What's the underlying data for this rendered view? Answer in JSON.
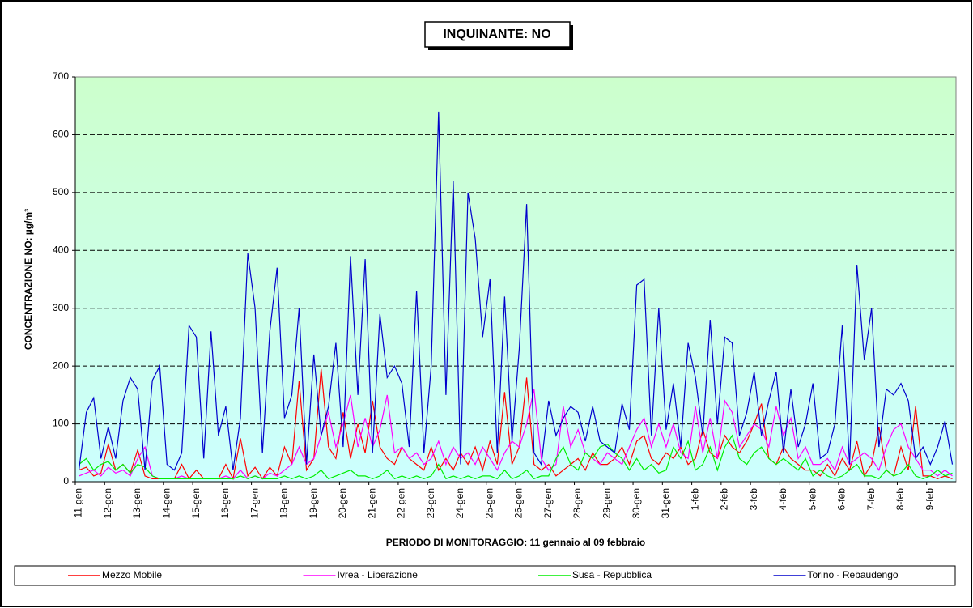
{
  "chart_data": {
    "type": "line",
    "title": "INQUINANTE: NO",
    "y_label": "CONCENTRAZIONE NO:  µg/m³",
    "x_label": "PERIODO DI MONITORAGGIO: 11 gennaio al 09 febbraio",
    "categories": [
      "11-gen",
      null,
      null,
      null,
      "12-gen",
      null,
      null,
      null,
      "13-gen",
      null,
      null,
      null,
      "14-gen",
      null,
      null,
      null,
      "15-gen",
      null,
      null,
      null,
      "16-gen",
      null,
      null,
      null,
      "17-gen",
      null,
      null,
      null,
      "18-gen",
      null,
      null,
      null,
      "19-gen",
      null,
      null,
      null,
      "20-gen",
      null,
      null,
      null,
      "21-gen",
      null,
      null,
      null,
      "22-gen",
      null,
      null,
      null,
      "23-gen",
      null,
      null,
      null,
      "24-gen",
      null,
      null,
      null,
      "25-gen",
      null,
      null,
      null,
      "26-gen",
      null,
      null,
      null,
      "27-gen",
      null,
      null,
      null,
      "28-gen",
      null,
      null,
      null,
      "29-gen",
      null,
      null,
      null,
      "30-gen",
      null,
      null,
      null,
      "31-gen",
      null,
      null,
      null,
      "1-feb",
      null,
      null,
      null,
      "2-feb",
      null,
      null,
      null,
      "3-feb",
      null,
      null,
      null,
      "4-feb",
      null,
      null,
      null,
      "5-feb",
      null,
      null,
      null,
      "6-feb",
      null,
      null,
      null,
      "7-feb",
      null,
      null,
      null,
      "8-feb",
      null,
      null,
      null,
      "9-feb",
      null,
      null,
      null
    ],
    "series": [
      {
        "name": "Mezzo Mobile",
        "color": "#ff0000",
        "values": [
          20,
          25,
          10,
          15,
          65,
          20,
          30,
          15,
          55,
          10,
          5,
          5,
          5,
          5,
          30,
          5,
          20,
          5,
          5,
          5,
          30,
          5,
          75,
          10,
          25,
          5,
          25,
          10,
          60,
          30,
          175,
          20,
          40,
          195,
          60,
          40,
          120,
          40,
          100,
          50,
          140,
          60,
          40,
          30,
          60,
          40,
          30,
          20,
          60,
          20,
          40,
          20,
          50,
          30,
          60,
          20,
          70,
          30,
          155,
          30,
          60,
          180,
          30,
          20,
          30,
          10,
          20,
          30,
          40,
          20,
          50,
          30,
          30,
          40,
          60,
          30,
          70,
          80,
          40,
          30,
          50,
          40,
          60,
          30,
          40,
          90,
          50,
          40,
          80,
          60,
          50,
          70,
          100,
          135,
          40,
          30,
          60,
          40,
          30,
          20,
          20,
          10,
          30,
          10,
          40,
          20,
          70,
          10,
          30,
          95,
          20,
          10,
          60,
          20,
          130,
          10,
          10,
          5,
          10,
          5
        ]
      },
      {
        "name": "Ivrea - Liberazione",
        "color": "#ff00ff",
        "values": [
          10,
          15,
          20,
          10,
          25,
          15,
          20,
          10,
          40,
          60,
          10,
          5,
          5,
          5,
          10,
          5,
          5,
          5,
          5,
          5,
          10,
          5,
          20,
          5,
          10,
          5,
          15,
          10,
          20,
          30,
          60,
          30,
          40,
          80,
          120,
          60,
          100,
          150,
          60,
          110,
          60,
          90,
          150,
          50,
          60,
          40,
          50,
          30,
          40,
          70,
          30,
          60,
          40,
          50,
          30,
          60,
          40,
          20,
          50,
          70,
          60,
          100,
          160,
          40,
          20,
          30,
          130,
          60,
          90,
          50,
          40,
          30,
          50,
          40,
          30,
          60,
          90,
          110,
          60,
          100,
          60,
          100,
          50,
          40,
          130,
          50,
          110,
          40,
          140,
          120,
          60,
          80,
          100,
          90,
          60,
          130,
          80,
          110,
          40,
          60,
          30,
          30,
          40,
          20,
          60,
          30,
          40,
          50,
          40,
          20,
          60,
          90,
          100,
          60,
          40,
          20,
          20,
          10,
          20,
          10
        ]
      },
      {
        "name": "Susa - Repubblica",
        "color": "#00ee00",
        "values": [
          30,
          40,
          20,
          30,
          35,
          20,
          30,
          15,
          30,
          25,
          10,
          5,
          5,
          5,
          5,
          5,
          5,
          5,
          5,
          5,
          5,
          5,
          10,
          5,
          10,
          5,
          5,
          5,
          10,
          5,
          10,
          5,
          10,
          20,
          5,
          10,
          15,
          20,
          10,
          10,
          5,
          10,
          20,
          5,
          10,
          5,
          10,
          5,
          10,
          30,
          5,
          10,
          5,
          10,
          5,
          10,
          10,
          5,
          20,
          5,
          10,
          20,
          5,
          10,
          10,
          40,
          60,
          30,
          20,
          50,
          40,
          60,
          65,
          50,
          40,
          20,
          40,
          20,
          30,
          15,
          20,
          60,
          40,
          70,
          20,
          30,
          60,
          20,
          60,
          80,
          40,
          30,
          50,
          60,
          40,
          30,
          40,
          30,
          20,
          40,
          10,
          20,
          10,
          5,
          10,
          20,
          30,
          10,
          10,
          5,
          20,
          10,
          15,
          30,
          10,
          5,
          10,
          20,
          10,
          15
        ]
      },
      {
        "name": "Torino - Rebaudengo",
        "color": "#0000cc",
        "values": [
          20,
          120,
          145,
          40,
          95,
          40,
          140,
          180,
          160,
          20,
          175,
          200,
          30,
          20,
          50,
          270,
          250,
          40,
          260,
          80,
          130,
          20,
          110,
          395,
          300,
          50,
          260,
          370,
          110,
          150,
          300,
          30,
          220,
          80,
          130,
          240,
          60,
          390,
          150,
          385,
          50,
          290,
          180,
          200,
          170,
          60,
          330,
          50,
          200,
          640,
          150,
          520,
          30,
          500,
          420,
          250,
          350,
          50,
          320,
          70,
          230,
          480,
          50,
          30,
          140,
          80,
          110,
          130,
          120,
          70,
          130,
          70,
          60,
          50,
          135,
          90,
          340,
          350,
          80,
          300,
          90,
          170,
          60,
          240,
          180,
          80,
          280,
          100,
          250,
          240,
          80,
          120,
          190,
          80,
          140,
          190,
          50,
          160,
          60,
          100,
          170,
          40,
          50,
          100,
          270,
          30,
          375,
          210,
          300,
          60,
          160,
          150,
          170,
          140,
          40,
          60,
          30,
          60,
          105,
          30
        ]
      }
    ],
    "ylim": [
      0,
      700
    ],
    "yticks": [
      0,
      100,
      200,
      300,
      400,
      500,
      600,
      700
    ],
    "grid": true,
    "legend": "bottom"
  }
}
